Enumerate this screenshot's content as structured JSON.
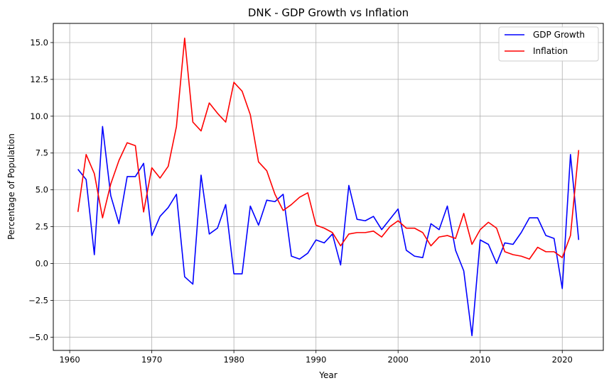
{
  "chart_data": {
    "type": "line",
    "title": "DNK - GDP Growth vs Inflation",
    "xlabel": "Year",
    "ylabel": "Percentage of Population",
    "xlim": [
      1958,
      2025
    ],
    "ylim": [
      -5.9,
      16.3
    ],
    "xticks": [
      1960,
      1970,
      1980,
      1990,
      2000,
      2010,
      2020
    ],
    "yticks": [
      -5.0,
      -2.5,
      0.0,
      2.5,
      5.0,
      7.5,
      10.0,
      12.5,
      15.0
    ],
    "ytick_labels": [
      "−5.0",
      "−2.5",
      "0.0",
      "2.5",
      "5.0",
      "7.5",
      "10.0",
      "12.5",
      "15.0"
    ],
    "grid": true,
    "legend_position": "top-right",
    "x": [
      1961,
      1962,
      1963,
      1964,
      1965,
      1966,
      1967,
      1968,
      1969,
      1970,
      1971,
      1972,
      1973,
      1974,
      1975,
      1976,
      1977,
      1978,
      1979,
      1980,
      1981,
      1982,
      1983,
      1984,
      1985,
      1986,
      1987,
      1988,
      1989,
      1990,
      1991,
      1992,
      1993,
      1994,
      1995,
      1996,
      1997,
      1998,
      1999,
      2000,
      2001,
      2002,
      2003,
      2004,
      2005,
      2006,
      2007,
      2008,
      2009,
      2010,
      2011,
      2012,
      2013,
      2014,
      2015,
      2016,
      2017,
      2018,
      2019,
      2020,
      2021,
      2022
    ],
    "series": [
      {
        "name": "GDP Growth",
        "color": "#0000ff",
        "values": [
          6.4,
          5.7,
          0.6,
          9.3,
          4.6,
          2.7,
          5.9,
          5.9,
          6.8,
          1.9,
          3.2,
          3.8,
          4.7,
          -0.9,
          -1.4,
          6.0,
          2.0,
          2.4,
          4.0,
          -0.7,
          -0.7,
          3.9,
          2.6,
          4.3,
          4.2,
          4.7,
          0.5,
          0.3,
          0.7,
          1.6,
          1.4,
          2.0,
          -0.1,
          5.3,
          3.0,
          2.9,
          3.2,
          2.3,
          3.0,
          3.7,
          0.9,
          0.5,
          0.4,
          2.7,
          2.3,
          3.9,
          0.9,
          -0.5,
          -4.9,
          1.6,
          1.3,
          0.0,
          1.4,
          1.3,
          2.1,
          3.1,
          3.1,
          1.9,
          1.7,
          -1.7,
          7.4,
          1.6
        ]
      },
      {
        "name": "Inflation",
        "color": "#ff0000",
        "values": [
          3.5,
          7.4,
          6.1,
          3.1,
          5.4,
          7.0,
          8.2,
          8.0,
          3.5,
          6.5,
          5.8,
          6.6,
          9.3,
          15.3,
          9.6,
          9.0,
          10.9,
          10.2,
          9.6,
          12.3,
          11.7,
          10.1,
          6.9,
          6.3,
          4.7,
          3.6,
          4.0,
          4.5,
          4.8,
          2.6,
          2.4,
          2.1,
          1.2,
          2.0,
          2.1,
          2.1,
          2.2,
          1.8,
          2.5,
          2.9,
          2.4,
          2.4,
          2.1,
          1.2,
          1.8,
          1.9,
          1.7,
          3.4,
          1.3,
          2.3,
          2.8,
          2.4,
          0.8,
          0.6,
          0.5,
          0.3,
          1.1,
          0.8,
          0.8,
          0.4,
          1.9,
          7.7
        ]
      }
    ]
  }
}
